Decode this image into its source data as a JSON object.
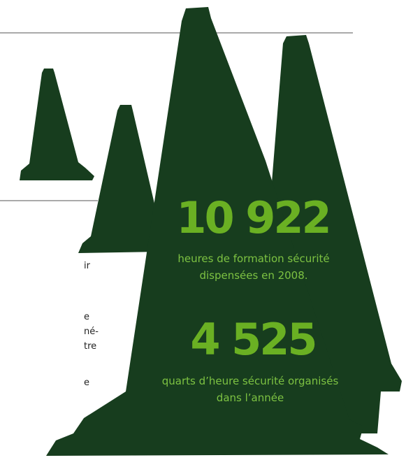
{
  "stats": [
    {
      "number": "10 922",
      "lines": [
        "heures de formation sécurité",
        "dispensées en 2008."
      ]
    },
    {
      "number": "4 525",
      "lines": [
        "quarts d’heure sécurité organisés",
        "dans l’année"
      ]
    }
  ],
  "side_text": [
    "ir",
    "e",
    "né-",
    "tre",
    "e"
  ]
}
